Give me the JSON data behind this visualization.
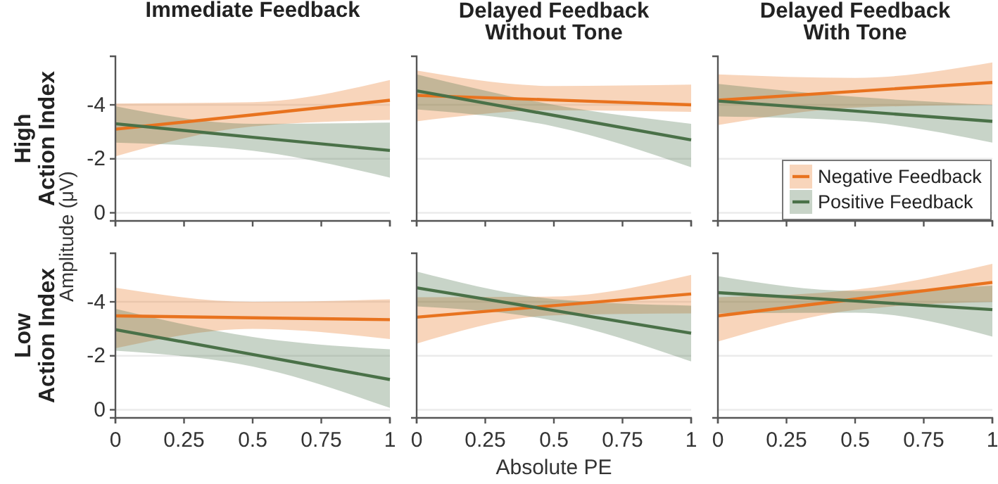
{
  "chart_data": [
    {
      "type": "line",
      "title": "Immediate Feedback",
      "ylabel": "High\nAction Index",
      "annotations": [
        "Amplitude (μV)"
      ],
      "x": [
        0,
        0.5,
        1
      ],
      "xlim": [
        0,
        1
      ],
      "xticks": [
        0,
        0.25,
        0.5,
        0.75,
        1
      ],
      "ylim": [
        0.3,
        -5.8
      ],
      "yticks": [
        0,
        -2,
        -4
      ],
      "grid": "y",
      "tick_labels": "y",
      "legend": false,
      "series": [
        {
          "color": "#e8731f",
          "values": [
            -3.1,
            -3.63,
            -4.17
          ],
          "lower": [
            -2.09,
            -3.2,
            -3.44
          ],
          "upper": [
            -4.05,
            -4.1,
            -4.92
          ]
        },
        {
          "color": "#4a7148",
          "values": [
            -3.3,
            -2.8,
            -2.31
          ],
          "lower": [
            -2.6,
            -2.3,
            -1.3
          ],
          "upper": [
            -3.95,
            -3.3,
            -3.34
          ]
        }
      ]
    },
    {
      "type": "line",
      "title": "Delayed Feedback\nWithout Tone",
      "x": [
        0,
        0.5,
        1
      ],
      "xlim": [
        0,
        1
      ],
      "xticks": [
        0,
        0.25,
        0.5,
        0.75,
        1
      ],
      "ylim": [
        0.3,
        -5.8
      ],
      "yticks": [
        0,
        -2,
        -4
      ],
      "grid": "y",
      "tick_labels": false,
      "legend": false,
      "series": [
        {
          "color": "#e8731f",
          "values": [
            -4.35,
            -4.18,
            -4.0
          ],
          "lower": [
            -3.39,
            -3.8,
            -3.74
          ],
          "upper": [
            -5.27,
            -4.7,
            -4.75
          ]
        },
        {
          "color": "#4a7148",
          "values": [
            -4.52,
            -3.61,
            -2.7
          ],
          "lower": [
            -3.83,
            -3.2,
            -1.69
          ],
          "upper": [
            -5.13,
            -4.0,
            -3.3
          ]
        }
      ]
    },
    {
      "type": "line",
      "title": "Delayed Feedback\nWith Tone",
      "x": [
        0,
        0.5,
        1
      ],
      "xlim": [
        0,
        1
      ],
      "xticks": [
        0,
        0.25,
        0.5,
        0.75,
        1
      ],
      "ylim": [
        0.3,
        -5.8
      ],
      "yticks": [
        0,
        -2,
        -4
      ],
      "grid": "y",
      "tick_labels": false,
      "legend": "bottom right",
      "series": [
        {
          "name": "Negative Feedback",
          "color": "#e8731f",
          "values": [
            -4.17,
            -4.5,
            -4.83
          ],
          "lower": [
            -3.25,
            -3.9,
            -4.0
          ],
          "upper": [
            -5.13,
            -5.0,
            -5.57
          ]
        },
        {
          "name": "Positive Feedback",
          "color": "#4a7148",
          "values": [
            -4.14,
            -3.77,
            -3.39
          ],
          "lower": [
            -3.57,
            -3.4,
            -2.6
          ],
          "upper": [
            -4.78,
            -4.3,
            -4.0
          ]
        }
      ]
    },
    {
      "type": "line",
      "ylabel": "Low\nAction Index",
      "x": [
        0,
        0.5,
        1
      ],
      "xlim": [
        0,
        1
      ],
      "xticks": [
        0,
        0.25,
        0.5,
        0.75,
        1
      ],
      "ylim": [
        0.3,
        -5.8
      ],
      "yticks": [
        0,
        -2,
        -4
      ],
      "grid": "y",
      "legend": false,
      "series": [
        {
          "color": "#e8731f",
          "values": [
            -3.48,
            -3.41,
            -3.34
          ],
          "lower": [
            -2.28,
            -3.0,
            -2.62
          ],
          "upper": [
            -4.52,
            -4.0,
            -4.09
          ]
        },
        {
          "color": "#4a7148",
          "values": [
            -2.97,
            -2.05,
            -1.12
          ],
          "lower": [
            -2.19,
            -1.6,
            -0.07
          ],
          "upper": [
            -3.74,
            -2.7,
            -2.24
          ]
        }
      ]
    },
    {
      "type": "line",
      "xlabel": "Absolute PE",
      "x": [
        0,
        0.5,
        1
      ],
      "xlim": [
        0,
        1
      ],
      "xticks": [
        0,
        0.25,
        0.5,
        0.75,
        1
      ],
      "ylim": [
        0.3,
        -5.8
      ],
      "yticks": [
        0,
        -2,
        -4
      ],
      "grid": "y",
      "tick_labels": "x",
      "legend": false,
      "series": [
        {
          "color": "#e8731f",
          "values": [
            -3.43,
            -3.86,
            -4.29
          ],
          "lower": [
            -2.45,
            -3.5,
            -3.57
          ],
          "upper": [
            -4.17,
            -4.2,
            -5.0
          ]
        },
        {
          "color": "#4a7148",
          "values": [
            -4.52,
            -3.68,
            -2.84
          ],
          "lower": [
            -3.83,
            -3.3,
            -1.79
          ],
          "upper": [
            -5.12,
            -4.1,
            -3.86
          ]
        }
      ]
    },
    {
      "type": "line",
      "x": [
        0,
        0.5,
        1
      ],
      "xlim": [
        0,
        1
      ],
      "xticks": [
        0,
        0.25,
        0.5,
        0.75,
        1
      ],
      "ylim": [
        0.3,
        -5.8
      ],
      "yticks": [
        0,
        -2,
        -4
      ],
      "grid": "y",
      "tick_labels": "x",
      "legend": false,
      "series": [
        {
          "color": "#e8731f",
          "values": [
            -3.48,
            -4.1,
            -4.72
          ],
          "lower": [
            -2.53,
            -3.7,
            -4.0
          ],
          "upper": [
            -4.17,
            -4.45,
            -5.41
          ]
        },
        {
          "color": "#4a7148",
          "values": [
            -4.34,
            -4.03,
            -3.71
          ],
          "lower": [
            -3.57,
            -3.6,
            -2.71
          ],
          "upper": [
            -4.95,
            -4.4,
            -4.6
          ]
        }
      ]
    }
  ]
}
